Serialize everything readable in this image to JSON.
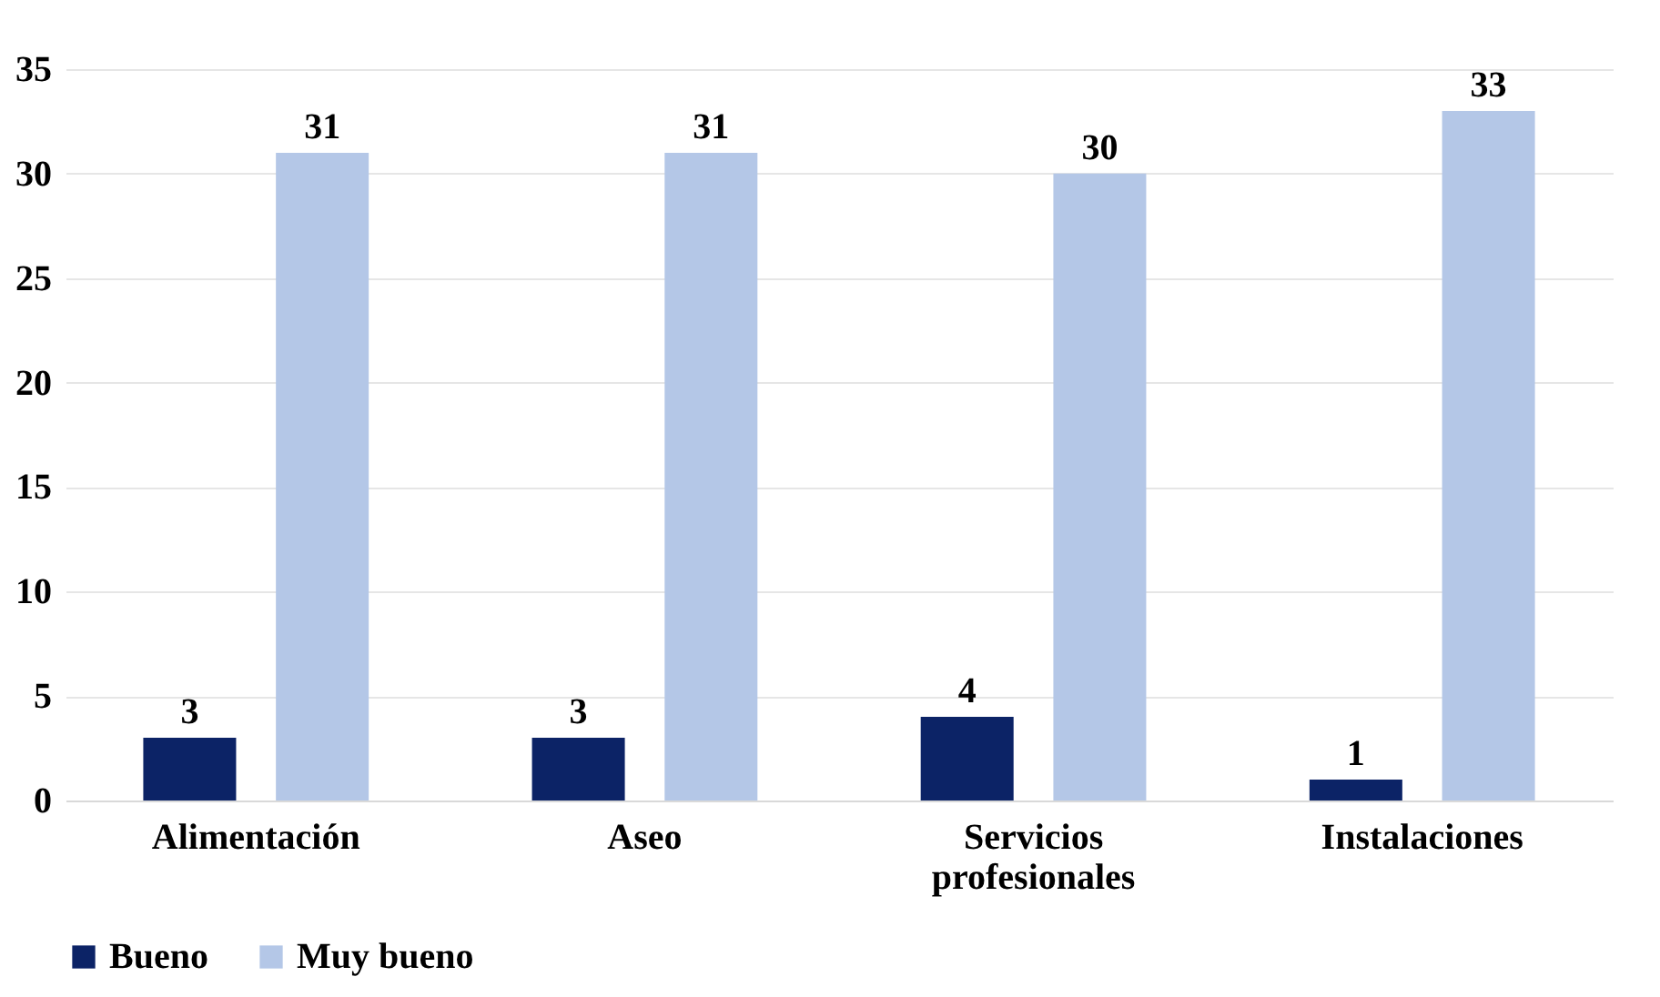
{
  "chart_data": {
    "type": "bar",
    "categories": [
      "Alimentación",
      "Aseo",
      "Servicios profesionales",
      "Instalaciones"
    ],
    "series": [
      {
        "name": "Bueno",
        "color": "#0c2366",
        "values": [
          3,
          3,
          4,
          1
        ]
      },
      {
        "name": "Muy bueno",
        "color": "#b4c7e7",
        "values": [
          31,
          31,
          30,
          33
        ]
      }
    ],
    "ylim": [
      0,
      35
    ],
    "yticks": [
      0,
      5,
      10,
      15,
      20,
      25,
      30,
      35
    ],
    "grid": "y",
    "legend": "bottom",
    "data_labels": true
  }
}
